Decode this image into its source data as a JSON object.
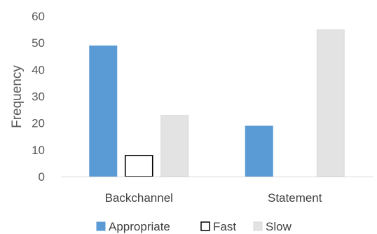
{
  "chart_data": {
    "type": "bar",
    "title": "",
    "xlabel": "",
    "ylabel": "Frequency",
    "ylim": [
      0,
      60
    ],
    "yticks": [
      0,
      10,
      20,
      30,
      40,
      50,
      60
    ],
    "grid": false,
    "legend_position": "bottom",
    "categories": [
      "Backchannel",
      "Statement"
    ],
    "series": [
      {
        "name": "Appropriate",
        "values": [
          49,
          19
        ],
        "color": "#5b9bd5",
        "stroke": "#5b9bd5"
      },
      {
        "name": "Fast",
        "values": [
          8,
          0
        ],
        "color": "#ffffff",
        "stroke": "#000000"
      },
      {
        "name": "Slow",
        "values": [
          23,
          55
        ],
        "color": "#e3e3e3",
        "stroke": "#d9d9d9"
      }
    ]
  }
}
